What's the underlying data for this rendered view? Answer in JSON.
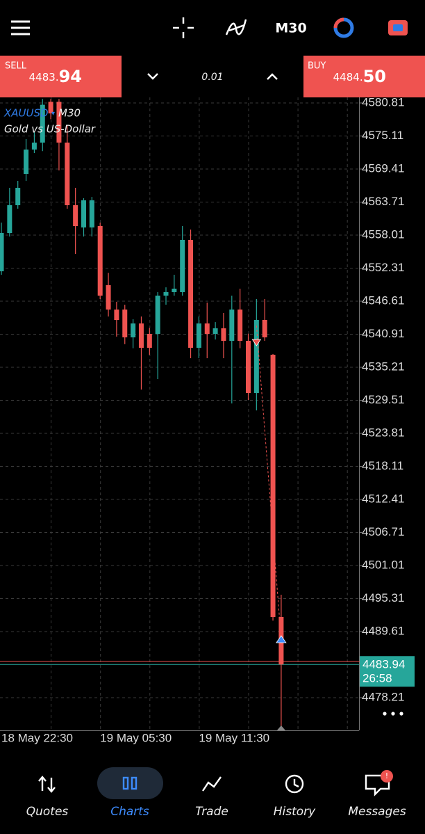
{
  "toolbar": {
    "timeframe": "M30"
  },
  "trade_panel": {
    "sell_label": "SELL",
    "sell_price_main": "4483.",
    "sell_price_pips": "94",
    "lot": "0.01",
    "buy_label": "BUY",
    "buy_price_main": "4484.",
    "buy_price_pips": "50"
  },
  "chart_data": {
    "type": "candlestick",
    "symbol": "XAUUSD",
    "timeframe": "M30",
    "description": "Gold vs US-Dollar",
    "categories": [
      "18 May 22:30",
      null,
      null,
      null,
      null,
      null,
      null,
      null,
      null,
      null,
      null,
      null,
      "19 May 05:30",
      null,
      null,
      null,
      null,
      null,
      null,
      null,
      null,
      null,
      null,
      null,
      "19 May 11:30",
      null,
      null,
      null,
      null,
      null,
      null,
      null,
      null,
      null,
      null
    ],
    "open": [
      4551.77,
      4558.37,
      4563.17,
      4568.57,
      4572.77,
      4573.97,
      4581.0,
      4581.0,
      4573.97,
      4563.17,
      4559.33,
      4559.33,
      4559.57,
      4549.37,
      4545.17,
      4545.17,
      4540.37,
      4542.77,
      4540.97,
      4540.97,
      4547.57,
      4548.17,
      4548.17,
      4557.17,
      4538.57,
      4542.77,
      4540.97,
      4541.93,
      4539.77,
      4545.17,
      4539.77,
      4530.77,
      4543.37,
      4537.37,
      4492.13
    ],
    "high": [
      4560.17,
      4566.17,
      4567.37,
      4574.57,
      4575.77,
      4581.5,
      4581.5,
      4581.5,
      4576.97,
      4566.17,
      4564.37,
      4564.6,
      4560.17,
      4551.5,
      4546.5,
      4546.0,
      4543.5,
      4543.97,
      4542.0,
      4548.17,
      4549.0,
      4551.17,
      4559.57,
      4558.97,
      4543.97,
      4546.37,
      4543.0,
      4544.57,
      4547.57,
      4548.77,
      4541.0,
      4546.97,
      4546.97,
      4537.5,
      4495.97
    ],
    "low": [
      4551.17,
      4557.77,
      4562.57,
      4567.37,
      4572.17,
      4572.5,
      4578.0,
      4569.17,
      4562.57,
      4554.77,
      4557.77,
      4557.77,
      4546.97,
      4543.97,
      4540.5,
      4539.2,
      4538.5,
      4531.37,
      4537.37,
      4533.17,
      4546.0,
      4547.57,
      4547.57,
      4536.77,
      4536.77,
      4536.77,
      4540.0,
      4536.77,
      4528.97,
      4538.5,
      4529.57,
      4527.77,
      4539.77,
      4491.5,
      4473.17
    ],
    "close": [
      4558.37,
      4563.17,
      4566.17,
      4572.77,
      4573.97,
      4580.5,
      4579.0,
      4573.97,
      4563.17,
      4559.57,
      4564.01,
      4564.01,
      4547.57,
      4545.17,
      4543.37,
      4540.37,
      4542.77,
      4538.57,
      4538.57,
      4547.57,
      4548.17,
      4548.77,
      4557.17,
      4538.57,
      4542.77,
      4540.97,
      4541.93,
      4539.77,
      4545.17,
      4539.77,
      4530.77,
      4543.37,
      4540.37,
      4492.13,
      4483.94
    ],
    "up_color": "#26a69a",
    "down_color": "#ef5350",
    "ylim": [
      4472.57,
      4581.77
    ],
    "yticks": [
      4580.81,
      4575.11,
      4569.41,
      4563.71,
      4558.01,
      4552.31,
      4546.61,
      4540.91,
      4535.21,
      4529.51,
      4523.81,
      4518.11,
      4512.41,
      4506.71,
      4501.01,
      4495.31,
      4489.61,
      4478.21
    ],
    "grid": true,
    "bid": 4483.94,
    "ask": 4484.5,
    "countdown": "26:58"
  },
  "nav": {
    "items": [
      "Quotes",
      "Charts",
      "Trade",
      "History",
      "Messages"
    ],
    "badge": "!"
  }
}
